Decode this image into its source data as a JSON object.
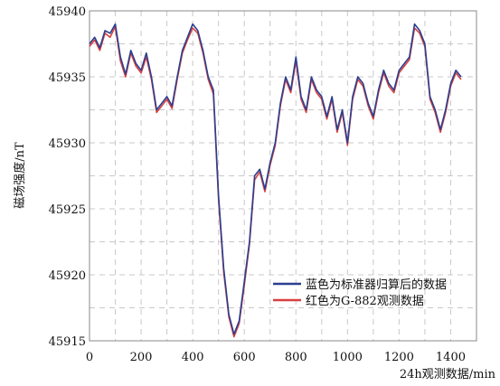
{
  "chart_data": {
    "type": "line",
    "xlabel": "24h观测数据/min",
    "ylabel": "磁场强度/nT",
    "xlim": [
      0,
      1500
    ],
    "ylim": [
      45915,
      45940
    ],
    "x_ticks": [
      0,
      200,
      400,
      600,
      800,
      1000,
      1200,
      1400
    ],
    "y_ticks": [
      45915,
      45920,
      45925,
      45930,
      45935,
      45940
    ],
    "grid": true,
    "legend_position": "lower-right",
    "series": [
      {
        "name": "蓝色为标准器归算后的数据",
        "color": "#2b3f8f",
        "x": [
          0,
          20,
          40,
          60,
          80,
          100,
          120,
          140,
          160,
          180,
          200,
          220,
          240,
          260,
          280,
          300,
          320,
          340,
          360,
          380,
          400,
          420,
          440,
          460,
          480,
          500,
          520,
          540,
          560,
          580,
          600,
          620,
          640,
          660,
          680,
          700,
          720,
          740,
          760,
          780,
          800,
          820,
          840,
          860,
          880,
          900,
          920,
          940,
          960,
          980,
          1000,
          1020,
          1040,
          1060,
          1080,
          1100,
          1120,
          1140,
          1160,
          1180,
          1200,
          1220,
          1240,
          1260,
          1280,
          1300,
          1320,
          1340,
          1360,
          1380,
          1400,
          1420,
          1440
        ],
        "y": [
          45937.5,
          45938.0,
          45937.2,
          45938.5,
          45938.3,
          45939.0,
          45936.5,
          45935.2,
          45937.0,
          45936.0,
          45935.5,
          45936.8,
          45935.0,
          45932.5,
          45933.0,
          45933.5,
          45932.8,
          45935.0,
          45937.0,
          45938.0,
          45939.0,
          45938.5,
          45937.0,
          45935.0,
          45934.0,
          45926.0,
          45920.5,
          45917.0,
          45915.5,
          45916.5,
          45919.5,
          45922.5,
          45927.5,
          45928.0,
          45926.5,
          45928.5,
          45930.0,
          45933.0,
          45935.0,
          45934.0,
          45936.5,
          45933.5,
          45932.5,
          45935.0,
          45934.0,
          45933.5,
          45932.0,
          45933.5,
          45931.0,
          45932.5,
          45930.0,
          45933.5,
          45935.0,
          45934.5,
          45933.0,
          45932.0,
          45934.0,
          45935.5,
          45934.5,
          45934.0,
          45935.5,
          45936.0,
          45936.5,
          45939.0,
          45938.5,
          45937.5,
          45933.5,
          45932.5,
          45931.0,
          45932.5,
          45934.5,
          45935.5,
          45935.0
        ]
      },
      {
        "name": "红色为G-882观测数据",
        "color": "#d84040",
        "x": [
          0,
          20,
          40,
          60,
          80,
          100,
          120,
          140,
          160,
          180,
          200,
          220,
          240,
          260,
          280,
          300,
          320,
          340,
          360,
          380,
          400,
          420,
          440,
          460,
          480,
          500,
          520,
          540,
          560,
          580,
          600,
          620,
          640,
          660,
          680,
          700,
          720,
          740,
          760,
          780,
          800,
          820,
          840,
          860,
          880,
          900,
          920,
          940,
          960,
          980,
          1000,
          1020,
          1040,
          1060,
          1080,
          1100,
          1120,
          1140,
          1160,
          1180,
          1200,
          1220,
          1240,
          1260,
          1280,
          1300,
          1320,
          1340,
          1360,
          1380,
          1400,
          1420,
          1440
        ],
        "y": [
          45937.3,
          45937.8,
          45937.0,
          45938.3,
          45938.0,
          45938.8,
          45936.2,
          45935.0,
          45936.8,
          45935.8,
          45935.3,
          45936.5,
          45934.8,
          45932.3,
          45932.8,
          45933.3,
          45932.6,
          45934.8,
          45936.8,
          45937.8,
          45938.7,
          45938.3,
          45936.8,
          45934.8,
          45933.7,
          45925.7,
          45920.2,
          45916.8,
          45915.3,
          45916.3,
          45919.2,
          45922.3,
          45927.2,
          45927.8,
          45926.3,
          45928.3,
          45929.8,
          45932.8,
          45934.8,
          45933.8,
          45936.2,
          45933.3,
          45932.3,
          45934.8,
          45933.8,
          45933.3,
          45931.8,
          45933.3,
          45930.8,
          45932.3,
          45929.8,
          45933.3,
          45934.8,
          45934.3,
          45932.8,
          45931.8,
          45933.8,
          45935.3,
          45934.3,
          45933.8,
          45935.3,
          45935.8,
          45936.3,
          45938.7,
          45938.3,
          45937.3,
          45933.3,
          45932.3,
          45930.8,
          45932.3,
          45934.3,
          45935.3,
          45934.8
        ]
      }
    ]
  }
}
